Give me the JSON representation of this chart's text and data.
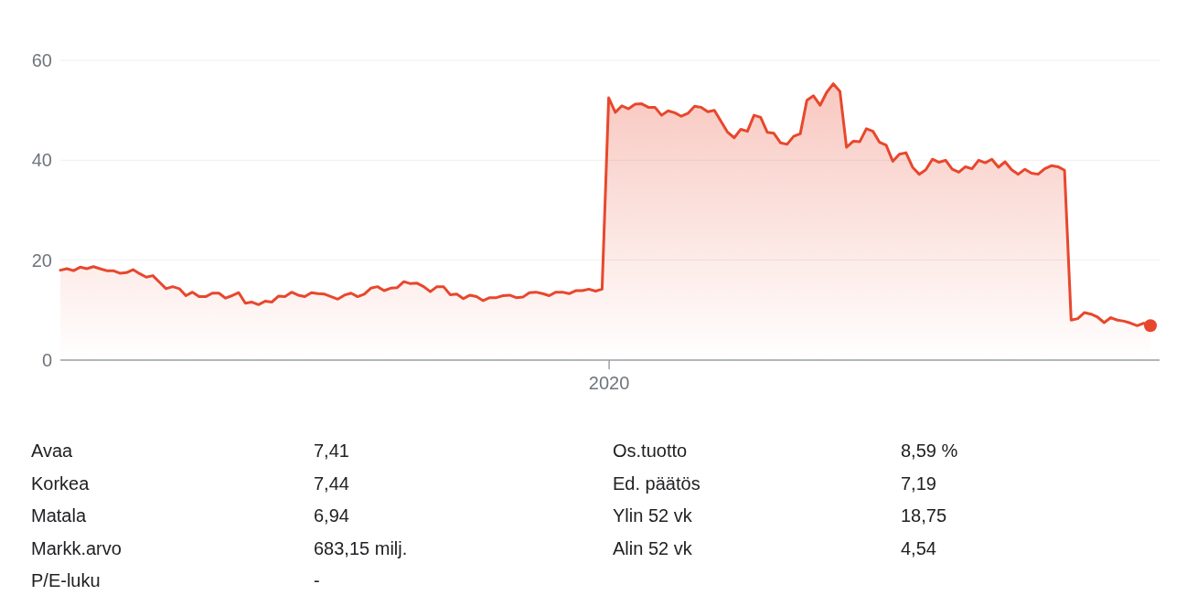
{
  "chart_data": {
    "type": "area",
    "categories": [
      null,
      null,
      null,
      null,
      null,
      null,
      null,
      null,
      null,
      null,
      null,
      null,
      null,
      null,
      null,
      null,
      null,
      null,
      null,
      null,
      null,
      null,
      null,
      null,
      null,
      null,
      null,
      null,
      null,
      null,
      null,
      null,
      null,
      null,
      null,
      null,
      null,
      null,
      null,
      null,
      null,
      null,
      null,
      null,
      null,
      null,
      null,
      null,
      null,
      null,
      null,
      null,
      null,
      null,
      null,
      null,
      null,
      null,
      null,
      null,
      null,
      null,
      null,
      null,
      null,
      null,
      null,
      null,
      null,
      null,
      null,
      null,
      null,
      null,
      null,
      null,
      null,
      null,
      null,
      null,
      null,
      null,
      null,
      "2020",
      null,
      null,
      null,
      null,
      null,
      null,
      null,
      null,
      null,
      null,
      null,
      null,
      null,
      null,
      null,
      null,
      null,
      null,
      null,
      null,
      null,
      null,
      null,
      null,
      null,
      null,
      null,
      null,
      null,
      null,
      null,
      null,
      null,
      null,
      null,
      null,
      null,
      null,
      null,
      null,
      null,
      null,
      null,
      null,
      null,
      null,
      null,
      null,
      null,
      null,
      null,
      null,
      null,
      null,
      null,
      null,
      null,
      null,
      null,
      null,
      null,
      null,
      null,
      null,
      null,
      null,
      null,
      null,
      null,
      null,
      null,
      null,
      null,
      null,
      null,
      null,
      null,
      null,
      null,
      null,
      null,
      null
    ],
    "series": [
      {
        "color": "#e8472d",
        "values": [
          18.0,
          18.3,
          17.9,
          18.6,
          18.3,
          18.7,
          18.3,
          17.9,
          17.9,
          17.4,
          17.5,
          18.1,
          17.3,
          16.6,
          16.9,
          15.6,
          14.3,
          14.7,
          14.3,
          12.9,
          13.6,
          12.7,
          12.7,
          13.4,
          13.4,
          12.4,
          12.9,
          13.5,
          11.4,
          11.6,
          11.1,
          11.8,
          11.6,
          12.8,
          12.7,
          13.6,
          13.0,
          12.7,
          13.5,
          13.3,
          13.2,
          12.7,
          12.2,
          13.0,
          13.4,
          12.7,
          13.2,
          14.4,
          14.7,
          13.9,
          14.4,
          14.5,
          15.7,
          15.3,
          15.4,
          14.7,
          13.7,
          14.7,
          14.7,
          13.1,
          13.2,
          12.3,
          13.0,
          12.7,
          11.9,
          12.5,
          12.5,
          12.9,
          13.0,
          12.5,
          12.6,
          13.5,
          13.6,
          13.3,
          12.9,
          13.6,
          13.6,
          13.3,
          13.9,
          13.9,
          14.2,
          13.8,
          14.2,
          52.5,
          49.6,
          50.9,
          50.3,
          51.2,
          51.3,
          50.6,
          50.6,
          49.0,
          49.9,
          49.5,
          48.8,
          49.4,
          50.8,
          50.6,
          49.7,
          50.0,
          47.8,
          45.6,
          44.5,
          46.2,
          45.8,
          49.0,
          48.6,
          45.6,
          45.4,
          43.5,
          43.2,
          44.8,
          45.3,
          52.0,
          52.9,
          51.0,
          53.6,
          55.3,
          53.8,
          42.6,
          43.8,
          43.7,
          46.3,
          45.8,
          43.6,
          43.0,
          39.8,
          41.2,
          41.5,
          38.6,
          37.2,
          38.1,
          40.2,
          39.6,
          40.0,
          38.2,
          37.6,
          38.7,
          38.3,
          40.0,
          39.5,
          40.2,
          38.6,
          39.7,
          38.1,
          37.2,
          38.2,
          37.4,
          37.2,
          38.3,
          38.9,
          38.7,
          38.0,
          8.0,
          8.3,
          9.5,
          9.2,
          8.6,
          7.5,
          8.5,
          8.0,
          7.8,
          7.4,
          6.9,
          7.4,
          6.9
        ]
      },
      {
        "type": "scatter",
        "color": "#e8472d",
        "values": [
          null,
          null,
          null,
          null,
          null,
          null,
          null,
          null,
          null,
          null,
          null,
          null,
          null,
          null,
          null,
          null,
          null,
          null,
          null,
          null,
          null,
          null,
          null,
          null,
          null,
          null,
          null,
          null,
          null,
          null,
          null,
          null,
          null,
          null,
          null,
          null,
          null,
          null,
          null,
          null,
          null,
          null,
          null,
          null,
          null,
          null,
          null,
          null,
          null,
          null,
          null,
          null,
          null,
          null,
          null,
          null,
          null,
          null,
          null,
          null,
          null,
          null,
          null,
          null,
          null,
          null,
          null,
          null,
          null,
          null,
          null,
          null,
          null,
          null,
          null,
          null,
          null,
          null,
          null,
          null,
          null,
          null,
          null,
          null,
          null,
          null,
          null,
          null,
          null,
          null,
          null,
          null,
          null,
          null,
          null,
          null,
          null,
          null,
          null,
          null,
          null,
          null,
          null,
          null,
          null,
          null,
          null,
          null,
          null,
          null,
          null,
          null,
          null,
          null,
          null,
          null,
          null,
          null,
          null,
          null,
          null,
          null,
          null,
          null,
          null,
          null,
          null,
          null,
          null,
          null,
          null,
          null,
          null,
          null,
          null,
          null,
          null,
          null,
          null,
          null,
          null,
          null,
          null,
          null,
          null,
          null,
          null,
          null,
          null,
          null,
          null,
          null,
          null,
          null,
          null,
          null,
          null,
          null,
          null,
          null,
          null,
          null,
          null,
          null,
          null,
          6.9
        ]
      }
    ],
    "ylim": [
      0,
      60
    ],
    "yticks": [
      0,
      20,
      40,
      60
    ],
    "grid": "y",
    "annotations": [
      "Avaa",
      "7,41",
      "Korkea",
      "7,44",
      "Matala",
      "6,94",
      "Markk.arvo",
      "683,15 milj.",
      "P/E-luku",
      "-",
      "Os.tuotto",
      "8,59 %",
      "Ed. päätös",
      "7,19",
      "Ylin 52 vk",
      "18,75",
      "Alin 52 vk",
      "4,54"
    ]
  }
}
